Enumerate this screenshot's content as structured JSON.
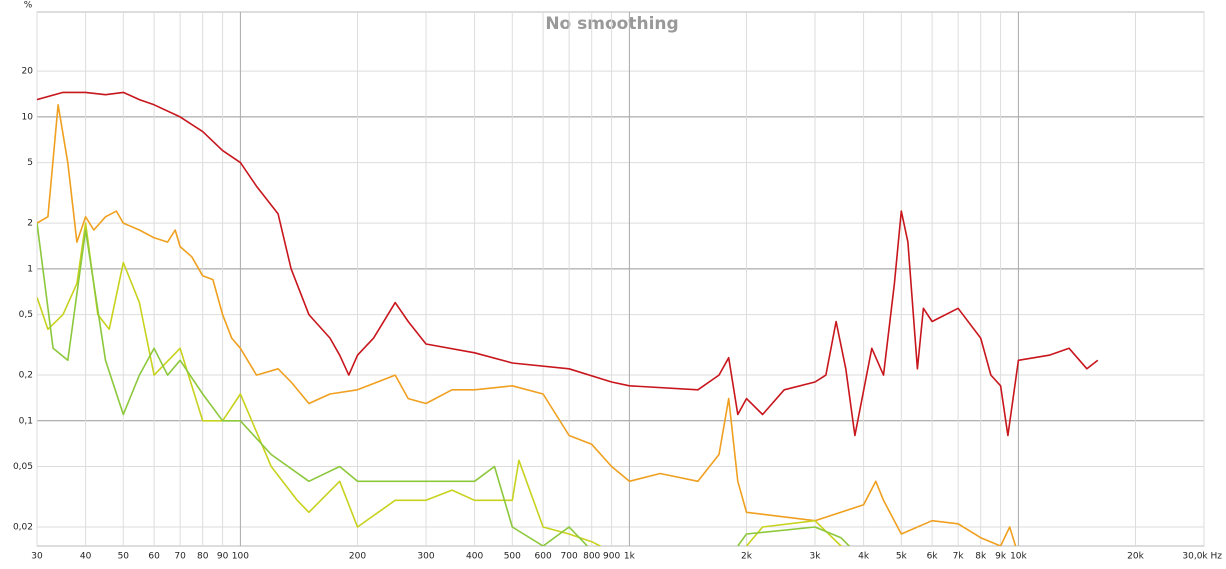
{
  "chart_data": {
    "type": "line",
    "title": "No smoothing",
    "y_label": "%",
    "log_x": true,
    "log_y": true,
    "grid": true,
    "xlim": [
      30,
      30000
    ],
    "ylim": [
      0.015,
      49
    ],
    "xticks": [
      30,
      40,
      50,
      60,
      70,
      80,
      90,
      100,
      200,
      300,
      400,
      500,
      600,
      700,
      800,
      900,
      {
        "value": 1000,
        "label": "1k"
      },
      {
        "value": 2000,
        "label": "2k"
      },
      {
        "value": 3000,
        "label": "3k"
      },
      {
        "value": 4000,
        "label": "4k"
      },
      {
        "value": 5000,
        "label": "5k"
      },
      {
        "value": 6000,
        "label": "6k"
      },
      {
        "value": 7000,
        "label": "7k"
      },
      {
        "value": 8000,
        "label": "8k"
      },
      {
        "value": 9000,
        "label": "9k"
      },
      {
        "value": 10000,
        "label": "10k"
      },
      {
        "value": 20000,
        "label": "20k"
      },
      {
        "value": 30000,
        "label": "30,0k Hz"
      }
    ],
    "yticks": [
      20,
      10,
      5,
      2,
      1,
      {
        "value": 0.5,
        "label": "0,5"
      },
      {
        "value": 0.2,
        "label": "0,2"
      },
      {
        "value": 0.1,
        "label": "0,1"
      },
      {
        "value": 0.05,
        "label": "0,05"
      },
      {
        "value": 0.02,
        "label": "0,02"
      }
    ],
    "series": [
      {
        "color": "#c8161d",
        "x": [
          30,
          35,
          40,
          45,
          50,
          55,
          60,
          70,
          80,
          90,
          100,
          110,
          125,
          135,
          150,
          170,
          180,
          190,
          200,
          220,
          250,
          270,
          300,
          400,
          500,
          700,
          900,
          1000,
          1500,
          1700,
          1800,
          1900,
          2000,
          2200,
          2500,
          3000,
          3200,
          3400,
          3600,
          3800,
          4200,
          4500,
          4800,
          5000,
          5200,
          5500,
          5700,
          6000,
          7000,
          8000,
          8500,
          9000,
          9400,
          10000,
          12000,
          13500,
          15000,
          16000
        ],
        "values": [
          13,
          14.5,
          14.5,
          14,
          14.5,
          13,
          12,
          10,
          8,
          6,
          5,
          3.5,
          2.3,
          1,
          0.5,
          0.35,
          0.27,
          0.2,
          0.27,
          0.35,
          0.6,
          0.45,
          0.32,
          0.28,
          0.24,
          0.22,
          0.18,
          0.17,
          0.16,
          0.2,
          0.26,
          0.11,
          0.14,
          0.11,
          0.16,
          0.18,
          0.2,
          0.45,
          0.22,
          0.08,
          0.3,
          0.2,
          0.8,
          2.4,
          1.5,
          0.22,
          0.55,
          0.45,
          0.55,
          0.35,
          0.2,
          0.17,
          0.08,
          0.25,
          0.27,
          0.3,
          0.22,
          0.25
        ]
      },
      {
        "color": "#f0a020",
        "x": [
          30,
          32,
          34,
          36,
          38,
          40,
          42,
          45,
          48,
          50,
          55,
          60,
          65,
          68,
          70,
          75,
          80,
          85,
          90,
          95,
          100,
          110,
          125,
          135,
          150,
          170,
          200,
          250,
          270,
          300,
          350,
          400,
          500,
          600,
          700,
          800,
          900,
          1000,
          1200,
          1500,
          1700,
          1800,
          1900,
          2000,
          3000,
          4000,
          4300,
          4500,
          5000,
          6000,
          7000,
          8000,
          9000,
          9500,
          10000
        ],
        "values": [
          2,
          2.2,
          12,
          5,
          1.5,
          2.2,
          1.8,
          2.2,
          2.4,
          2,
          1.8,
          1.6,
          1.5,
          1.8,
          1.4,
          1.2,
          0.9,
          0.85,
          0.5,
          0.35,
          0.3,
          0.2,
          0.22,
          0.18,
          0.13,
          0.15,
          0.16,
          0.2,
          0.14,
          0.13,
          0.16,
          0.16,
          0.17,
          0.15,
          0.08,
          0.07,
          0.05,
          0.04,
          0.045,
          0.04,
          0.06,
          0.14,
          0.04,
          0.025,
          0.022,
          0.028,
          0.04,
          0.03,
          0.018,
          0.022,
          0.021,
          0.017,
          0.015,
          0.02,
          0.013
        ]
      },
      {
        "color": "#c8d21e",
        "x": [
          30,
          32,
          35,
          38,
          40,
          43,
          46,
          50,
          55,
          60,
          70,
          80,
          90,
          100,
          120,
          140,
          150,
          180,
          200,
          250,
          300,
          350,
          400,
          500,
          520,
          600,
          700,
          800,
          1000,
          1500,
          2000,
          2200,
          3000,
          3500,
          4000
        ],
        "values": [
          0.65,
          0.4,
          0.5,
          0.8,
          2,
          0.5,
          0.4,
          1.1,
          0.6,
          0.2,
          0.3,
          0.1,
          0.1,
          0.15,
          0.05,
          0.03,
          0.025,
          0.04,
          0.02,
          0.03,
          0.03,
          0.035,
          0.03,
          0.03,
          0.055,
          0.02,
          0.018,
          0.016,
          0.012,
          null,
          0.015,
          0.02,
          0.022,
          0.015,
          0.013
        ]
      },
      {
        "color": "#8cc83c",
        "x": [
          30,
          33,
          36,
          40,
          45,
          50,
          55,
          60,
          65,
          70,
          80,
          90,
          100,
          120,
          150,
          180,
          200,
          250,
          300,
          350,
          400,
          450,
          500,
          600,
          700,
          800,
          1500,
          1900,
          2000,
          3000,
          3500,
          4000
        ],
        "values": [
          2,
          0.3,
          0.25,
          1.8,
          0.25,
          0.11,
          0.2,
          0.3,
          0.2,
          0.25,
          0.15,
          0.1,
          0.1,
          0.06,
          0.04,
          0.05,
          0.04,
          0.04,
          0.04,
          0.04,
          0.04,
          0.05,
          0.02,
          0.015,
          0.02,
          0.014,
          null,
          0.015,
          0.018,
          0.02,
          0.017,
          0.012
        ]
      }
    ]
  }
}
